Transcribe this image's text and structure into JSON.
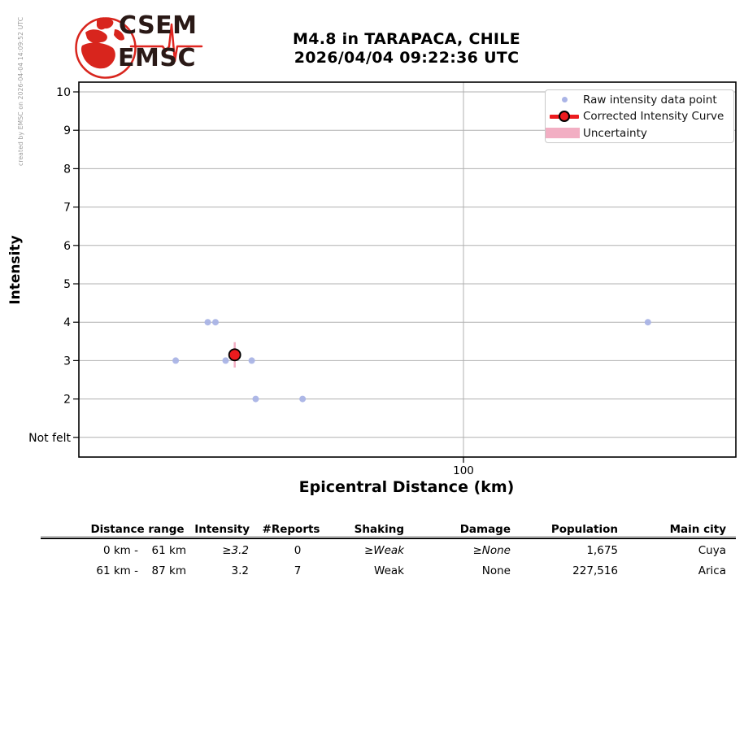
{
  "credit": "created by EMSC on 2026-04-04 14:09:52 UTC",
  "logo": {
    "line1": "CSEM",
    "line2": "EMSC"
  },
  "header": {
    "title_line1": "M4.8 in TARAPACA, CHILE",
    "title_line2": "2026/04/04 09:22:36 UTC"
  },
  "chart_data": {
    "type": "scatter",
    "xlabel": "Epicentral Distance (km)",
    "ylabel": "Intensity",
    "x_scale": "log",
    "x_range_km": [
      48.9,
      166.2
    ],
    "x_ticks": [
      {
        "km": 100,
        "label": "100"
      }
    ],
    "y_ticks": [
      {
        "value": 1,
        "label": "Not felt"
      },
      {
        "value": 2,
        "label": "2"
      },
      {
        "value": 3,
        "label": "3"
      },
      {
        "value": 4,
        "label": "4"
      },
      {
        "value": 5,
        "label": "5"
      },
      {
        "value": 6,
        "label": "6"
      },
      {
        "value": 7,
        "label": "7"
      },
      {
        "value": 8,
        "label": "8"
      },
      {
        "value": 9,
        "label": "9"
      },
      {
        "value": 10,
        "label": "10"
      }
    ],
    "raw_points": [
      {
        "km": 58.5,
        "intensity": 3
      },
      {
        "km": 62.1,
        "intensity": 4
      },
      {
        "km": 63.0,
        "intensity": 4
      },
      {
        "km": 64.2,
        "intensity": 3
      },
      {
        "km": 67.4,
        "intensity": 3
      },
      {
        "km": 67.9,
        "intensity": 2
      },
      {
        "km": 74.1,
        "intensity": 2
      },
      {
        "km": 141.0,
        "intensity": 4
      }
    ],
    "corrected_curve": [
      {
        "km": 65.3,
        "intensity": 3.15,
        "uncertainty": 0.33
      }
    ],
    "legend": [
      {
        "label": "Raw intensity data point"
      },
      {
        "label": "Corrected Intensity Curve"
      },
      {
        "label": "Uncertainty"
      }
    ],
    "colors": {
      "raw_point": "#aab4e6",
      "corrected": "#ec1b1e",
      "uncertainty": "#f2aec3",
      "grid": "#b0b0b0"
    }
  },
  "table": {
    "headers": [
      {
        "label": "Distance range"
      },
      {
        "label": "Intensity"
      },
      {
        "label": "#Reports"
      },
      {
        "label": "Shaking"
      },
      {
        "label": "Damage"
      },
      {
        "label": "Population"
      },
      {
        "label": "Main city"
      }
    ],
    "rows": [
      {
        "distance_from": "0 km -",
        "distance_to": "61 km",
        "intensity": "≥3.2",
        "reports": "0",
        "shaking": "≥Weak",
        "damage": "≥None",
        "population": "1,675",
        "main_city": "Cuya",
        "estimated": true
      },
      {
        "distance_from": "61 km -",
        "distance_to": "87 km",
        "intensity": "3.2",
        "reports": "7",
        "shaking": "Weak",
        "damage": "None",
        "population": "227,516",
        "main_city": "Arica",
        "estimated": false
      }
    ]
  }
}
